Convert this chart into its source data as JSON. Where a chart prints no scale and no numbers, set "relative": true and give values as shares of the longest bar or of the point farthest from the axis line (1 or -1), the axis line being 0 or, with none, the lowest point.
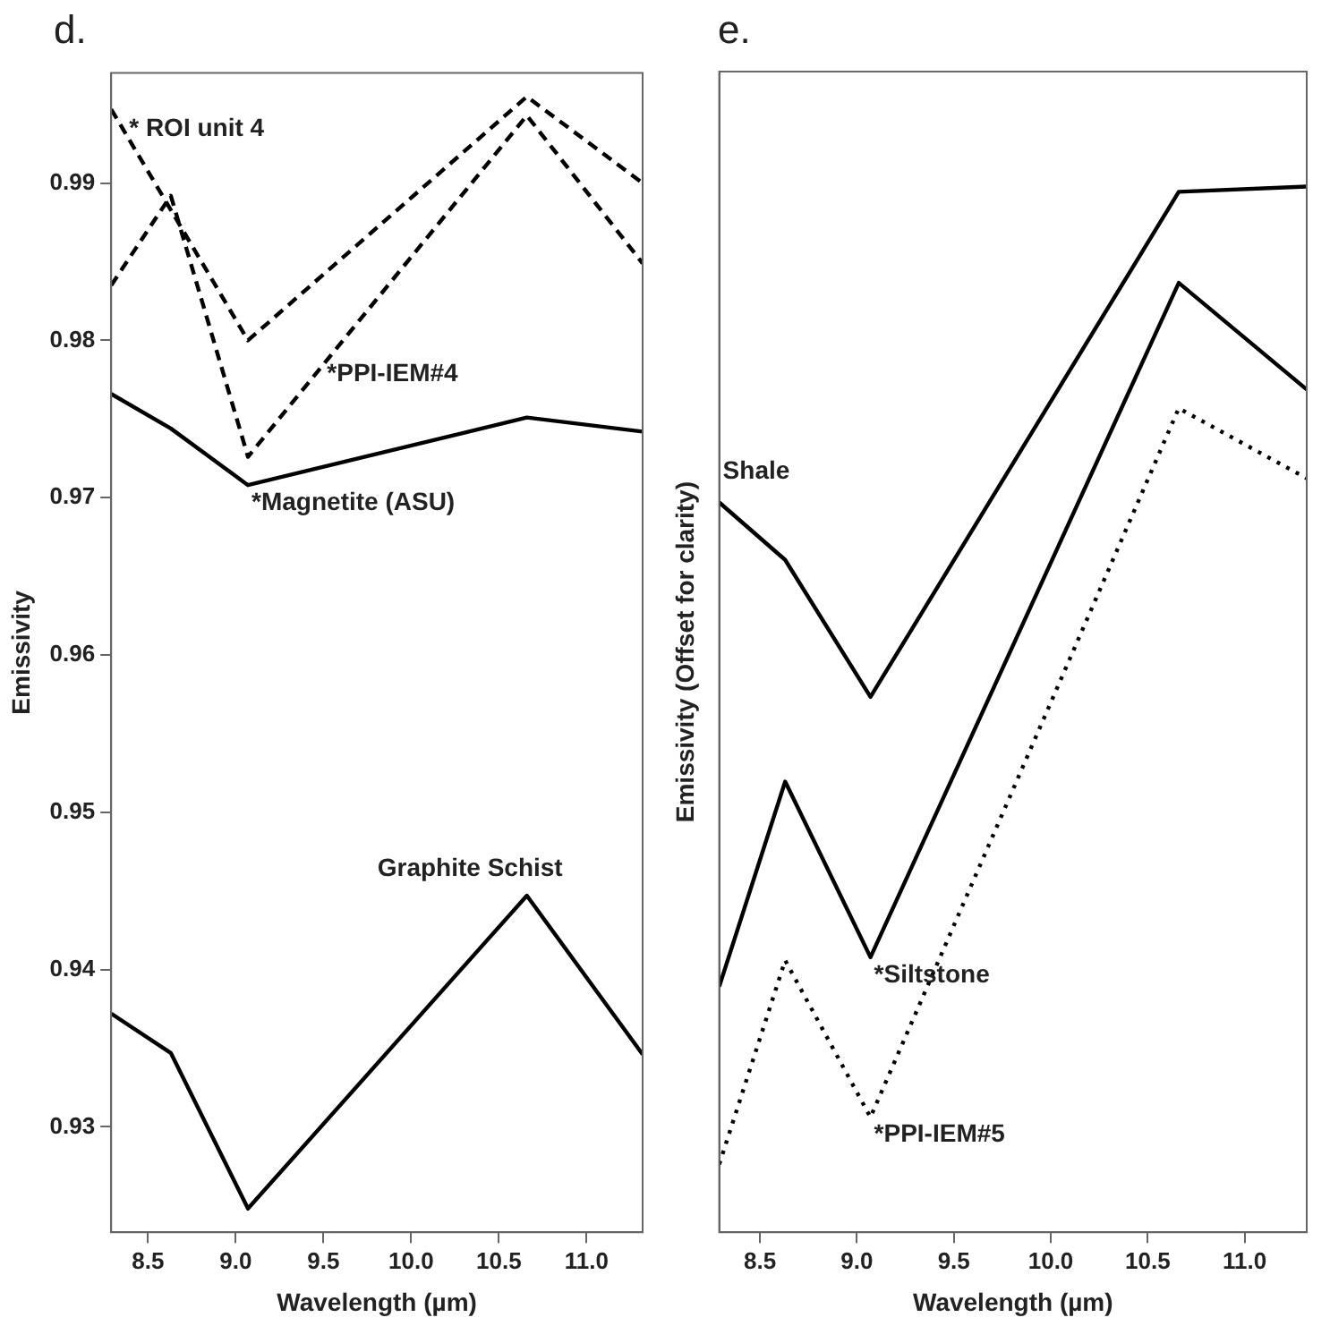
{
  "chart_data": [
    {
      "type": "line",
      "title": "d.",
      "xlabel": "Wavelength (µm)",
      "ylabel": "Emissivity",
      "x": [
        8.29,
        8.63,
        9.07,
        10.66,
        11.32
      ],
      "xlim": [
        8.29,
        11.32
      ],
      "xticks": [
        8.5,
        {
          "value": 9,
          "label": "9.0"
        },
        9.5,
        {
          "value": 10,
          "label": "10.0"
        },
        10.5,
        {
          "value": 11,
          "label": "11.0"
        }
      ],
      "ylim": [
        0.9233,
        0.997
      ],
      "yticks": [
        0.93,
        0.94,
        0.95,
        0.96,
        0.97,
        0.98,
        0.99
      ],
      "grid": false,
      "legend": false,
      "marker": "none",
      "series": [
        {
          "color": "#000000",
          "line_style": "dashed",
          "values": [
            0.9947,
            0.9883,
            0.98,
            0.9955,
            0.99
          ]
        },
        {
          "color": "#000000",
          "line_style": "dashed",
          "values": [
            0.9835,
            0.9892,
            0.9726,
            0.9943,
            0.9849
          ]
        },
        {
          "color": "#000000",
          "line_style": "solid",
          "values": [
            0.9766,
            0.9744,
            0.9708,
            0.9751,
            0.9742
          ]
        },
        {
          "color": "#000000",
          "line_style": "solid",
          "values": [
            0.9372,
            0.9347,
            0.9248,
            0.9447,
            0.9346
          ]
        }
      ],
      "annotations": [
        {
          "text": "* ROI unit 4",
          "x": 8.29,
          "y": 0.9947
        },
        {
          "text": "*PPI-IEM#4",
          "x": 9.5,
          "y": 0.979
        },
        {
          "text": "*Magnetite (ASU)",
          "x": 9.07,
          "y": 0.9708
        },
        {
          "text": "Graphite Schist",
          "x": 10.66,
          "y": 0.9447
        }
      ]
    },
    {
      "type": "line",
      "title": "e.",
      "xlabel": "Wavelength (µm)",
      "ylabel": "Emissivity (Offset for clarity)",
      "relative": true,
      "x": [
        8.29,
        8.63,
        9.07,
        10.66,
        11.32
      ],
      "xlim": [
        8.29,
        11.32
      ],
      "xticks": [
        8.5,
        {
          "value": 9,
          "label": "9.0"
        },
        9.5,
        {
          "value": 10,
          "label": "10.0"
        },
        10.5,
        {
          "value": 11,
          "label": "11.0"
        }
      ],
      "grid": false,
      "legend": false,
      "marker": "none",
      "series": [
        {
          "color": "#000000",
          "line_style": "solid",
          "values": [
            0.698,
            0.643,
            0.512,
            0.995,
            1
          ]
        },
        {
          "color": "#000000",
          "line_style": "solid",
          "values": [
            0.235,
            0.431,
            0.263,
            0.908,
            0.806
          ]
        },
        {
          "color": "#000000",
          "line_style": "dotted",
          "values": [
            0.065,
            0.26,
            0.11,
            0.788,
            0.721
          ]
        }
      ],
      "annotations": [
        {
          "text": "Shale",
          "x": 8.29,
          "y": 0.698
        },
        {
          "text": "*Siltstone",
          "x": 9.07,
          "y": 0.263
        },
        {
          "text": "*PPI-IEM#5",
          "x": 9.07,
          "y": 0.11
        }
      ]
    }
  ]
}
